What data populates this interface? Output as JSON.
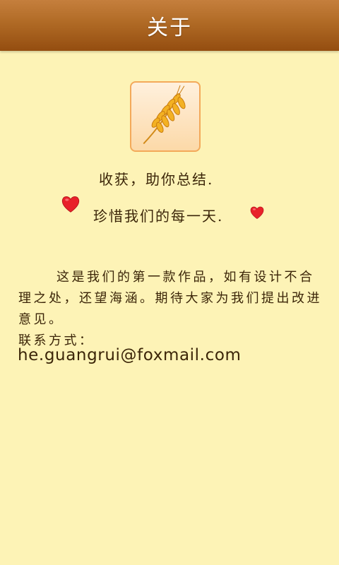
{
  "header": {
    "title": "关于"
  },
  "app_icon": {
    "icon": "wheat-icon"
  },
  "slogans": {
    "line1": "收获，助你总结.",
    "line2": "珍惜我们的每一天."
  },
  "decorations": {
    "heart_color": "#e8212a"
  },
  "about": {
    "description": "这是我们的第一款作品，如有设计不合理之处，还望海涵。期待大家为我们提出改进意见。",
    "contact_label": "联系方式：",
    "email": "he.guangrui@foxmail.com"
  },
  "colors": {
    "background": "#fdf3b6",
    "title_bar": "#a55d1c",
    "text": "#3b2508"
  }
}
